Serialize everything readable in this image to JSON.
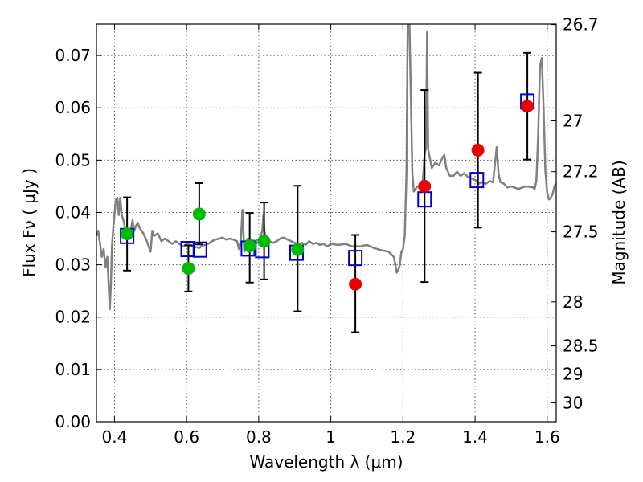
{
  "chart_data": {
    "type": "scatter",
    "xlabel": "Wavelength  λ (μm)",
    "ylabel": "Flux  Fν  ( μJy )",
    "ylabel_right": "Magnitude (AB)",
    "xlim": [
      0.35,
      1.625
    ],
    "ylim": [
      0.0,
      0.076
    ],
    "x_ticks": [
      0.4,
      0.6,
      0.8,
      1.0,
      1.2,
      1.4,
      1.6
    ],
    "x_tick_labels": [
      "0.4",
      "0.6",
      "0.8",
      "1",
      "1.2",
      "1.4",
      "1.6"
    ],
    "y_ticks": [
      0.0,
      0.01,
      0.02,
      0.03,
      0.04,
      0.05,
      0.06,
      0.07
    ],
    "y_tick_labels": [
      "0.00",
      "0.01",
      "0.02",
      "0.03",
      "0.04",
      "0.05",
      "0.06",
      "0.07"
    ],
    "right_ticks": [
      {
        "label": "26.7",
        "flux": 0.0759
      },
      {
        "label": "27",
        "flux": 0.0575
      },
      {
        "label": "27.2",
        "flux": 0.0478
      },
      {
        "label": "27.5",
        "flux": 0.0363
      },
      {
        "label": "28",
        "flux": 0.0229
      },
      {
        "label": "28.5",
        "flux": 0.0145
      },
      {
        "label": "29",
        "flux": 0.0091
      },
      {
        "label": "30",
        "flux": 0.0036
      }
    ],
    "grid": true,
    "colors": {
      "spectrum": "#808080",
      "model_squares": "#0000cc",
      "green_points": "#00bb00",
      "red_points": "#ee0000",
      "errorbars": "#000000"
    },
    "series": [
      {
        "kind": "spectrum",
        "points": [
          [
            0.35,
            0.0355
          ],
          [
            0.355,
            0.0365
          ],
          [
            0.36,
            0.034
          ],
          [
            0.365,
            0.0315
          ],
          [
            0.37,
            0.033
          ],
          [
            0.375,
            0.0295
          ],
          [
            0.38,
            0.0315
          ],
          [
            0.383,
            0.0275
          ],
          [
            0.387,
            0.0215
          ],
          [
            0.39,
            0.026
          ],
          [
            0.393,
            0.0335
          ],
          [
            0.397,
            0.0375
          ],
          [
            0.4,
            0.0395
          ],
          [
            0.404,
            0.0425
          ],
          [
            0.408,
            0.0428
          ],
          [
            0.412,
            0.0395
          ],
          [
            0.416,
            0.0428
          ],
          [
            0.42,
            0.0395
          ],
          [
            0.425,
            0.0385
          ],
          [
            0.43,
            0.0368
          ],
          [
            0.435,
            0.0355
          ],
          [
            0.44,
            0.035
          ],
          [
            0.445,
            0.0365
          ],
          [
            0.45,
            0.0385
          ],
          [
            0.455,
            0.0365
          ],
          [
            0.46,
            0.0375
          ],
          [
            0.465,
            0.038
          ],
          [
            0.47,
            0.037
          ],
          [
            0.48,
            0.036
          ],
          [
            0.49,
            0.0345
          ],
          [
            0.5,
            0.0325
          ],
          [
            0.505,
            0.0365
          ],
          [
            0.51,
            0.0355
          ],
          [
            0.52,
            0.036
          ],
          [
            0.53,
            0.0345
          ],
          [
            0.54,
            0.035
          ],
          [
            0.55,
            0.0345
          ],
          [
            0.56,
            0.034
          ],
          [
            0.57,
            0.0345
          ],
          [
            0.58,
            0.034
          ],
          [
            0.59,
            0.0335
          ],
          [
            0.6,
            0.034
          ],
          [
            0.61,
            0.0338
          ],
          [
            0.62,
            0.0335
          ],
          [
            0.63,
            0.0333
          ],
          [
            0.635,
            0.0332
          ],
          [
            0.64,
            0.0335
          ],
          [
            0.65,
            0.0338
          ],
          [
            0.66,
            0.034
          ],
          [
            0.67,
            0.0345
          ],
          [
            0.68,
            0.0348
          ],
          [
            0.69,
            0.035
          ],
          [
            0.7,
            0.0352
          ],
          [
            0.71,
            0.0348
          ],
          [
            0.72,
            0.035
          ],
          [
            0.73,
            0.0348
          ],
          [
            0.74,
            0.0345
          ],
          [
            0.745,
            0.033
          ],
          [
            0.75,
            0.0345
          ],
          [
            0.755,
            0.0405
          ],
          [
            0.76,
            0.0325
          ],
          [
            0.765,
            0.0345
          ],
          [
            0.77,
            0.035
          ],
          [
            0.78,
            0.0348
          ],
          [
            0.79,
            0.0345
          ],
          [
            0.8,
            0.0348
          ],
          [
            0.805,
            0.0355
          ],
          [
            0.81,
            0.0365
          ],
          [
            0.813,
            0.0395
          ],
          [
            0.816,
            0.0365
          ],
          [
            0.82,
            0.035
          ],
          [
            0.83,
            0.0345
          ],
          [
            0.84,
            0.0342
          ],
          [
            0.85,
            0.0345
          ],
          [
            0.86,
            0.035
          ],
          [
            0.87,
            0.0352
          ],
          [
            0.88,
            0.0348
          ],
          [
            0.89,
            0.0345
          ],
          [
            0.9,
            0.0342
          ],
          [
            0.91,
            0.034
          ],
          [
            0.92,
            0.0342
          ],
          [
            0.93,
            0.0338
          ],
          [
            0.94,
            0.0345
          ],
          [
            0.95,
            0.034
          ],
          [
            0.96,
            0.0342
          ],
          [
            0.97,
            0.0338
          ],
          [
            0.98,
            0.034
          ],
          [
            0.99,
            0.0335
          ],
          [
            1.0,
            0.034
          ],
          [
            1.02,
            0.0338
          ],
          [
            1.04,
            0.034
          ],
          [
            1.06,
            0.0335
          ],
          [
            1.08,
            0.0335
          ],
          [
            1.1,
            0.0338
          ],
          [
            1.12,
            0.0332
          ],
          [
            1.14,
            0.0328
          ],
          [
            1.16,
            0.0325
          ],
          [
            1.175,
            0.0315
          ],
          [
            1.183,
            0.0285
          ],
          [
            1.19,
            0.0295
          ],
          [
            1.196,
            0.0325
          ],
          [
            1.2,
            0.033
          ],
          [
            1.205,
            0.0355
          ],
          [
            1.21,
            0.048
          ],
          [
            1.213,
            0.076
          ],
          [
            1.218,
            0.076
          ],
          [
            1.222,
            0.062
          ],
          [
            1.226,
            0.0475
          ],
          [
            1.23,
            0.044
          ],
          [
            1.24,
            0.045
          ],
          [
            1.25,
            0.0448
          ],
          [
            1.255,
            0.046
          ],
          [
            1.26,
            0.051
          ],
          [
            1.264,
            0.0525
          ],
          [
            1.267,
            0.0745
          ],
          [
            1.27,
            0.052
          ],
          [
            1.28,
            0.0485
          ],
          [
            1.29,
            0.0495
          ],
          [
            1.3,
            0.049
          ],
          [
            1.31,
            0.0505
          ],
          [
            1.315,
            0.051
          ],
          [
            1.32,
            0.0485
          ],
          [
            1.33,
            0.047
          ],
          [
            1.34,
            0.047
          ],
          [
            1.35,
            0.0478
          ],
          [
            1.36,
            0.047
          ],
          [
            1.37,
            0.0475
          ],
          [
            1.38,
            0.0468
          ],
          [
            1.39,
            0.0465
          ],
          [
            1.4,
            0.0462
          ],
          [
            1.41,
            0.0455
          ],
          [
            1.42,
            0.0458
          ],
          [
            1.43,
            0.0455
          ],
          [
            1.44,
            0.046
          ],
          [
            1.45,
            0.0458
          ],
          [
            1.46,
            0.0525
          ],
          [
            1.465,
            0.0475
          ],
          [
            1.47,
            0.0458
          ],
          [
            1.48,
            0.0455
          ],
          [
            1.49,
            0.0448
          ],
          [
            1.5,
            0.045
          ],
          [
            1.52,
            0.0445
          ],
          [
            1.54,
            0.045
          ],
          [
            1.56,
            0.0448
          ],
          [
            1.565,
            0.0445
          ],
          [
            1.57,
            0.046
          ],
          [
            1.575,
            0.055
          ],
          [
            1.58,
            0.068
          ],
          [
            1.585,
            0.0695
          ],
          [
            1.59,
            0.06
          ],
          [
            1.595,
            0.048
          ],
          [
            1.6,
            0.0438
          ],
          [
            1.605,
            0.0425
          ],
          [
            1.61,
            0.0428
          ],
          [
            1.615,
            0.0435
          ],
          [
            1.62,
            0.045
          ],
          [
            1.625,
            0.0455
          ]
        ]
      },
      {
        "kind": "model_squares",
        "points": [
          [
            0.435,
            0.0355
          ],
          [
            0.603,
            0.033
          ],
          [
            0.637,
            0.0329
          ],
          [
            0.77,
            0.0331
          ],
          [
            0.81,
            0.0328
          ],
          [
            0.905,
            0.0323
          ],
          [
            1.068,
            0.0313
          ],
          [
            1.26,
            0.0425
          ],
          [
            1.405,
            0.0462
          ],
          [
            1.545,
            0.0612
          ]
        ]
      },
      {
        "kind": "green_points",
        "points": [
          [
            0.435,
            0.0359
          ],
          [
            0.605,
            0.0293
          ],
          [
            0.635,
            0.0397
          ],
          [
            0.775,
            0.0336
          ],
          [
            0.815,
            0.0345
          ],
          [
            0.908,
            0.0329
          ]
        ]
      },
      {
        "kind": "red_points",
        "points": [
          [
            1.068,
            0.0263
          ],
          [
            1.26,
            0.045
          ],
          [
            1.408,
            0.0519
          ],
          [
            1.545,
            0.0603
          ]
        ]
      },
      {
        "kind": "errorbars",
        "points": [
          [
            0.435,
            0.0289,
            0.0429
          ],
          [
            0.605,
            0.0249,
            0.0337
          ],
          [
            0.635,
            0.0339,
            0.0456
          ],
          [
            0.775,
            0.0266,
            0.0399
          ],
          [
            0.815,
            0.0272,
            0.0419
          ],
          [
            0.908,
            0.0211,
            0.0451
          ],
          [
            1.068,
            0.0171,
            0.0357
          ],
          [
            1.26,
            0.0267,
            0.0634
          ],
          [
            1.408,
            0.0371,
            0.0667
          ],
          [
            1.545,
            0.0501,
            0.0705
          ]
        ]
      }
    ]
  }
}
